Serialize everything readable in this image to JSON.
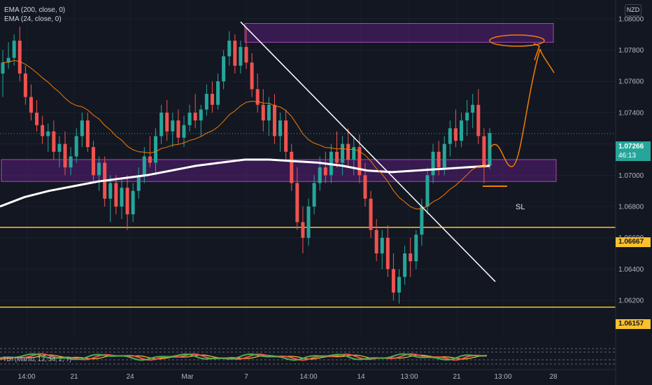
{
  "legend": {
    "ema200": "EMA (200, close, 0)",
    "ema24": "EMA (24, close, 0)"
  },
  "currency": "NZD",
  "indicator_label": "TDI (Marsu, 13, 34, 2, 7)",
  "last_price": {
    "value": "1.07266",
    "countdown": "46:13"
  },
  "level_tags": {
    "upper": "1.06667",
    "lower": "1.06157"
  },
  "sl_label": "SL",
  "colors": {
    "background": "#131722",
    "up": "#26a69a",
    "down": "#ef5350",
    "ema200": "#ffffff",
    "ema24": "#f57c00",
    "zone_fill": "#7b1fa2",
    "zone_border": "#ab47bc",
    "level_line": "#fbc02d",
    "drawing": "#f57c00",
    "trendline": "#ffffff"
  },
  "chart_data": {
    "type": "candlestick",
    "y_axis": {
      "ticks": [
        "1.08000",
        "1.07800",
        "1.07600",
        "1.07400",
        "1.07200",
        "1.07000",
        "1.06800",
        "1.06600",
        "1.06400",
        "1.06200"
      ],
      "range": [
        1.0595,
        1.0812
      ]
    },
    "x_axis": {
      "ticks": [
        "14:00",
        "21",
        "24",
        "Mar",
        "7",
        "14:00",
        "14",
        "13:00",
        "21",
        "13:00",
        "28"
      ]
    },
    "series": [
      {
        "name": "EMA (200, close, 0)",
        "type": "line",
        "values": [
          1.068,
          1.0686,
          1.069,
          1.0693,
          1.0696,
          1.0698,
          1.07,
          1.0703,
          1.0706,
          1.0708,
          1.071,
          1.071,
          1.0709,
          1.0708,
          1.0706,
          1.0703,
          1.0702,
          1.0703,
          1.0704,
          1.0705,
          1.0706
        ]
      },
      {
        "name": "EMA (24, close, 0)",
        "type": "line"
      }
    ],
    "candles_ohlc": [
      [
        1.0765,
        1.078,
        1.075,
        1.0772
      ],
      [
        1.0772,
        1.0785,
        1.0768,
        1.0775
      ],
      [
        1.0775,
        1.079,
        1.077,
        1.0786
      ],
      [
        1.0786,
        1.0795,
        1.076,
        1.0765
      ],
      [
        1.0765,
        1.077,
        1.0745,
        1.075
      ],
      [
        1.075,
        1.0758,
        1.0735,
        1.074
      ],
      [
        1.074,
        1.0748,
        1.0728,
        1.0732
      ],
      [
        1.0732,
        1.0738,
        1.072,
        1.0725
      ],
      [
        1.0725,
        1.0733,
        1.0715,
        1.0728
      ],
      [
        1.0728,
        1.0735,
        1.071,
        1.0715
      ],
      [
        1.0715,
        1.0725,
        1.0705,
        1.072
      ],
      [
        1.072,
        1.0728,
        1.07,
        1.0705
      ],
      [
        1.0705,
        1.0718,
        1.07,
        1.0712
      ],
      [
        1.0712,
        1.073,
        1.0708,
        1.0725
      ],
      [
        1.0725,
        1.074,
        1.0718,
        1.0735
      ],
      [
        1.0735,
        1.074,
        1.0715,
        1.0718
      ],
      [
        1.0718,
        1.0722,
        1.0695,
        1.07
      ],
      [
        1.07,
        1.0712,
        1.069,
        1.0708
      ],
      [
        1.0708,
        1.0712,
        1.068,
        1.0685
      ],
      [
        1.0685,
        1.07,
        1.067,
        1.0695
      ],
      [
        1.0695,
        1.07,
        1.0675,
        1.068
      ],
      [
        1.068,
        1.0698,
        1.0672,
        1.0692
      ],
      [
        1.0692,
        1.07,
        1.0665,
        1.0675
      ],
      [
        1.0675,
        1.0695,
        1.067,
        1.069
      ],
      [
        1.069,
        1.0705,
        1.0685,
        1.07
      ],
      [
        1.07,
        1.0718,
        1.0695,
        1.0712
      ],
      [
        1.0712,
        1.0725,
        1.0705,
        1.0708
      ],
      [
        1.0708,
        1.073,
        1.07,
        1.0725
      ],
      [
        1.0725,
        1.0745,
        1.072,
        1.074
      ],
      [
        1.074,
        1.0748,
        1.0722,
        1.0728
      ],
      [
        1.0728,
        1.074,
        1.0718,
        1.0735
      ],
      [
        1.0735,
        1.0742,
        1.072,
        1.0724
      ],
      [
        1.0724,
        1.0738,
        1.0718,
        1.0732
      ],
      [
        1.0732,
        1.0745,
        1.0728,
        1.074
      ],
      [
        1.074,
        1.0752,
        1.073,
        1.0735
      ],
      [
        1.0735,
        1.0745,
        1.0725,
        1.0742
      ],
      [
        1.0742,
        1.0758,
        1.0738,
        1.0752
      ],
      [
        1.0752,
        1.076,
        1.074,
        1.0745
      ],
      [
        1.0745,
        1.0765,
        1.0742,
        1.076
      ],
      [
        1.076,
        1.078,
        1.0755,
        1.0776
      ],
      [
        1.0776,
        1.0792,
        1.077,
        1.0786
      ],
      [
        1.0786,
        1.079,
        1.0765,
        1.077
      ],
      [
        1.077,
        1.0786,
        1.0765,
        1.0782
      ],
      [
        1.0782,
        1.0794,
        1.0768,
        1.0772
      ],
      [
        1.0772,
        1.0778,
        1.075,
        1.0755
      ],
      [
        1.0755,
        1.0765,
        1.074,
        1.0745
      ],
      [
        1.0745,
        1.0755,
        1.0728,
        1.0735
      ],
      [
        1.0735,
        1.075,
        1.0725,
        1.0745
      ],
      [
        1.0745,
        1.0752,
        1.072,
        1.0725
      ],
      [
        1.0725,
        1.074,
        1.0715,
        1.0735
      ],
      [
        1.0735,
        1.0742,
        1.071,
        1.0715
      ],
      [
        1.0715,
        1.072,
        1.069,
        1.0695
      ],
      [
        1.0695,
        1.0705,
        1.0665,
        1.067
      ],
      [
        1.067,
        1.068,
        1.065,
        1.066
      ],
      [
        1.066,
        1.0685,
        1.0655,
        1.068
      ],
      [
        1.068,
        1.07,
        1.0675,
        1.0695
      ],
      [
        1.0695,
        1.0712,
        1.069,
        1.0705
      ],
      [
        1.0705,
        1.0715,
        1.0695,
        1.07
      ],
      [
        1.07,
        1.072,
        1.0695,
        1.0715
      ],
      [
        1.0715,
        1.0728,
        1.0705,
        1.0708
      ],
      [
        1.0708,
        1.0725,
        1.07,
        1.072
      ],
      [
        1.072,
        1.073,
        1.0705,
        1.071
      ],
      [
        1.071,
        1.0725,
        1.07,
        1.0718
      ],
      [
        1.0718,
        1.0726,
        1.0695,
        1.07
      ],
      [
        1.07,
        1.0708,
        1.068,
        1.0685
      ],
      [
        1.0685,
        1.069,
        1.066,
        1.0665
      ],
      [
        1.0665,
        1.0672,
        1.0645,
        1.065
      ],
      [
        1.065,
        1.0665,
        1.064,
        1.066
      ],
      [
        1.066,
        1.0668,
        1.0635,
        1.064
      ],
      [
        1.064,
        1.065,
        1.062,
        1.0625
      ],
      [
        1.0625,
        1.064,
        1.0618,
        1.0635
      ],
      [
        1.0635,
        1.0655,
        1.063,
        1.065
      ],
      [
        1.065,
        1.066,
        1.0635,
        1.0645
      ],
      [
        1.0645,
        1.0665,
        1.064,
        1.0662
      ],
      [
        1.0662,
        1.0685,
        1.0655,
        1.068
      ],
      [
        1.068,
        1.0705,
        1.0675,
        1.07
      ],
      [
        1.07,
        1.072,
        1.0695,
        1.0715
      ],
      [
        1.0715,
        1.0722,
        1.07,
        1.0705
      ],
      [
        1.0705,
        1.0725,
        1.07,
        1.072
      ],
      [
        1.072,
        1.0735,
        1.0712,
        1.073
      ],
      [
        1.073,
        1.0742,
        1.0718,
        1.0722
      ],
      [
        1.0722,
        1.074,
        1.0718,
        1.0735
      ],
      [
        1.0735,
        1.0748,
        1.0725,
        1.074
      ],
      [
        1.074,
        1.0752,
        1.073,
        1.0745
      ],
      [
        1.0745,
        1.0755,
        1.072,
        1.0725
      ],
      [
        1.0725,
        1.073,
        1.0695,
        1.0706
      ],
      [
        1.0706,
        1.073,
        1.0704,
        1.0727
      ]
    ],
    "horizontal_levels": [
      "1.06667",
      "1.06157"
    ]
  }
}
